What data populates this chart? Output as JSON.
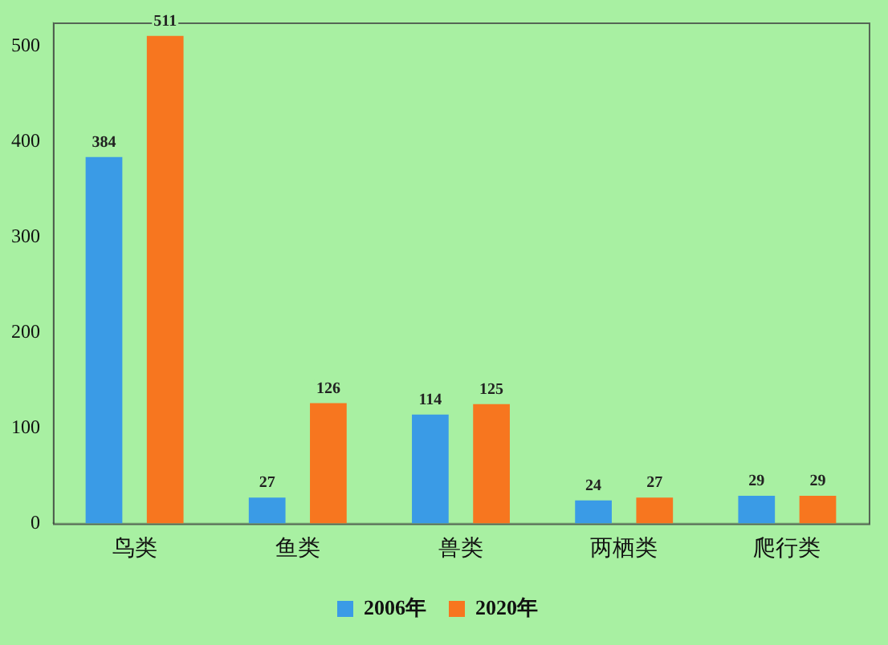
{
  "chart_data": {
    "type": "bar",
    "categories": [
      "鸟类",
      "鱼类",
      "兽类",
      "两栖类",
      "爬行类"
    ],
    "series": [
      {
        "name": "2006年",
        "color": "#3a9be6",
        "values": [
          384,
          27,
          114,
          24,
          29
        ]
      },
      {
        "name": "2020年",
        "color": "#f7761f",
        "values": [
          511,
          126,
          125,
          27,
          29
        ]
      }
    ],
    "ylim": [
      0,
      525
    ],
    "yticks": [
      0,
      100,
      200,
      300,
      400,
      500
    ],
    "grid": false,
    "legend": "bottom",
    "data_labels": true
  }
}
